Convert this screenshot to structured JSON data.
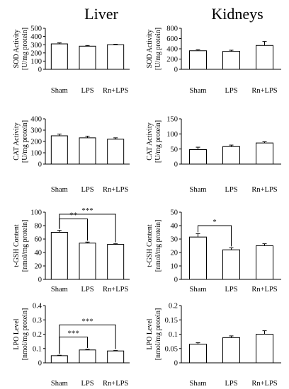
{
  "column_titles": [
    "Liver",
    "Kidneys"
  ],
  "chart_data": [
    {
      "type": "bar",
      "column": 0,
      "row": 0,
      "ylabel_lines": [
        "SOD Activity",
        "[U/mg protein]"
      ],
      "ylim": [
        0,
        500
      ],
      "yticks": [
        0,
        100,
        200,
        300,
        400,
        500
      ],
      "categories": [
        "Sham",
        "LPS",
        "Rn+LPS"
      ],
      "values": [
        310,
        282,
        300
      ],
      "errors": [
        12,
        8,
        6
      ],
      "brackets": []
    },
    {
      "type": "bar",
      "column": 1,
      "row": 0,
      "ylabel_lines": [
        "SOD Activity",
        "[U/mg protein]"
      ],
      "ylim": [
        0,
        800
      ],
      "yticks": [
        0,
        200,
        400,
        600,
        800
      ],
      "categories": [
        "Sham",
        "LPS",
        "Rn+LPS"
      ],
      "values": [
        362,
        350,
        465
      ],
      "errors": [
        20,
        22,
        78
      ],
      "brackets": []
    },
    {
      "type": "bar",
      "column": 0,
      "row": 1,
      "ylabel_lines": [
        "CAT Activity",
        "[U/mg protein]"
      ],
      "ylim": [
        0,
        400
      ],
      "yticks": [
        0,
        100,
        200,
        300,
        400
      ],
      "categories": [
        "Sham",
        "LPS",
        "Rn+LPS"
      ],
      "values": [
        250,
        232,
        220
      ],
      "errors": [
        15,
        15,
        12
      ],
      "brackets": []
    },
    {
      "type": "bar",
      "column": 1,
      "row": 1,
      "ylabel_lines": [
        "CAT Activity",
        "[U/mg protein]"
      ],
      "ylim": [
        0,
        150
      ],
      "yticks": [
        0,
        50,
        100,
        150
      ],
      "categories": [
        "Sham",
        "LPS",
        "Rn+LPS"
      ],
      "values": [
        48,
        58,
        70
      ],
      "errors": [
        8,
        5,
        4
      ],
      "brackets": []
    },
    {
      "type": "bar",
      "column": 0,
      "row": 2,
      "ylabel_lines": [
        "t-GSH Content",
        "[nmol/mg protein]"
      ],
      "ylim": [
        0,
        100
      ],
      "yticks": [
        0,
        20,
        40,
        60,
        80,
        100
      ],
      "categories": [
        "Sham",
        "LPS",
        "Rn+LPS"
      ],
      "values": [
        70,
        54,
        52
      ],
      "errors": [
        3,
        1.5,
        1
      ],
      "brackets": [
        {
          "from": 0,
          "to": 1,
          "y": 90,
          "label": "**"
        },
        {
          "from": 0,
          "to": 2,
          "y": 97,
          "label": "***"
        }
      ]
    },
    {
      "type": "bar",
      "column": 1,
      "row": 2,
      "ylabel_lines": [
        "t-GSH Content",
        "[nmol/mg protein]"
      ],
      "ylim": [
        0,
        50
      ],
      "yticks": [
        0,
        10,
        20,
        30,
        40,
        50
      ],
      "categories": [
        "Sham",
        "LPS",
        "Rn+LPS"
      ],
      "values": [
        31.5,
        22,
        25
      ],
      "errors": [
        2.5,
        1.5,
        1.5
      ],
      "brackets": [
        {
          "from": 0,
          "to": 1,
          "y": 40,
          "label": "*"
        }
      ]
    },
    {
      "type": "bar",
      "column": 0,
      "row": 3,
      "ylabel_lines": [
        "LPO Level",
        "[nmol/mg protein]"
      ],
      "ylim": [
        0,
        0.4
      ],
      "yticks": [
        0,
        0.1,
        0.2,
        0.3,
        0.4
      ],
      "categories": [
        "Sham",
        "LPS",
        "Rn+LPS"
      ],
      "values": [
        0.05,
        0.09,
        0.083
      ],
      "errors": [
        0.003,
        0.004,
        0.003
      ],
      "brackets": [
        {
          "from": 0,
          "to": 1,
          "y": 0.18,
          "label": "***"
        },
        {
          "from": 0,
          "to": 2,
          "y": 0.265,
          "label": "***"
        }
      ]
    },
    {
      "type": "bar",
      "column": 1,
      "row": 3,
      "ylabel_lines": [
        "LPO Level",
        "[nmol/mg protein]"
      ],
      "ylim": [
        0,
        0.2
      ],
      "yticks": [
        0,
        0.05,
        0.1,
        0.15,
        0.2
      ],
      "categories": [
        "Sham",
        "LPS",
        "Rn+LPS"
      ],
      "values": [
        0.065,
        0.088,
        0.1
      ],
      "errors": [
        0.005,
        0.006,
        0.012
      ],
      "brackets": []
    }
  ]
}
